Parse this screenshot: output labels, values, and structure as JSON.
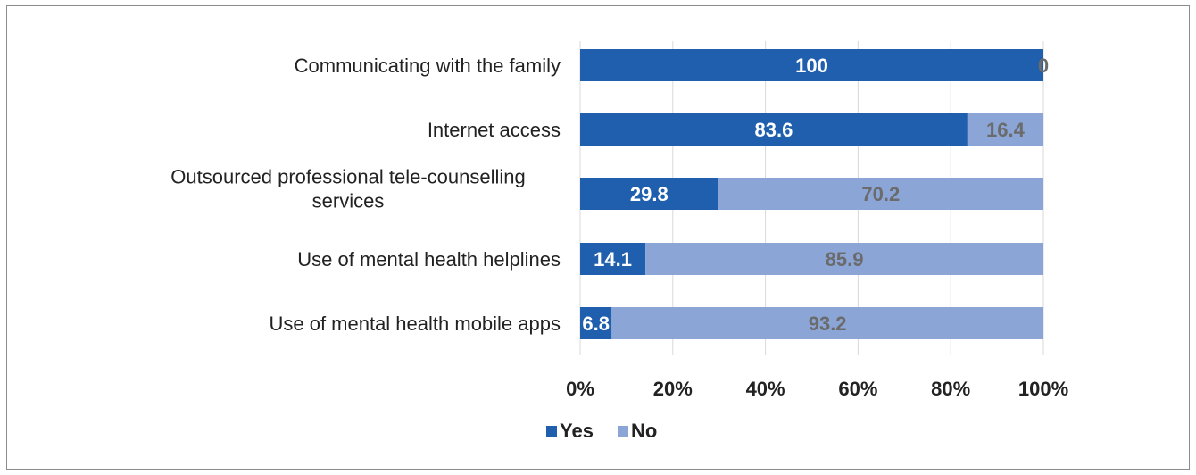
{
  "chart_data": {
    "type": "bar",
    "orientation": "horizontal",
    "stacked": true,
    "categories": [
      [
        "Communicating with the family"
      ],
      [
        "Internet access"
      ],
      [
        "Outsourced professional tele-counselling",
        "services"
      ],
      [
        "Use of mental health helplines"
      ],
      [
        "Use of mental health mobile apps"
      ]
    ],
    "series": [
      {
        "name": "Yes",
        "color": "#1f5fad",
        "label_color": "#ffffff",
        "values": [
          100,
          83.6,
          29.8,
          14.1,
          6.8
        ]
      },
      {
        "name": "No",
        "color": "#8aa5d6",
        "label_color": "#6b6b6b",
        "values": [
          0,
          16.4,
          70.2,
          85.9,
          93.2
        ]
      }
    ],
    "value_labels": [
      [
        "100",
        "83.6",
        "29.8",
        "14.1",
        "6.8"
      ],
      [
        "0",
        "16.4",
        "70.2",
        "85.9",
        "93.2"
      ]
    ],
    "x_ticks": [
      "0%",
      "20%",
      "40%",
      "60%",
      "80%",
      "100%"
    ],
    "xlim": [
      0,
      100
    ],
    "grid": "vertical",
    "legend": "bottom-center",
    "title": "",
    "xlabel": "",
    "ylabel": ""
  }
}
